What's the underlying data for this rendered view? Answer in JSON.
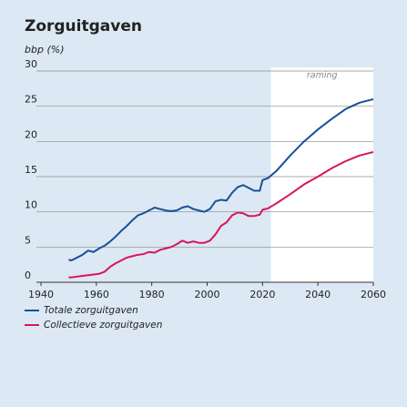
{
  "chart_data": {
    "type": "line",
    "title": "Zorguitgaven",
    "y_label": "bbp (%)",
    "forecast_region": {
      "label": "raming",
      "x": [
        2023,
        2060
      ]
    },
    "x": [
      1950,
      1951,
      1953,
      1955,
      1957,
      1959,
      1961,
      1963,
      1965,
      1967,
      1969,
      1971,
      1973,
      1975,
      1977,
      1979,
      1981,
      1983,
      1985,
      1987,
      1989,
      1991,
      1993,
      1995,
      1997,
      1999,
      2001,
      2003,
      2005,
      2007,
      2009,
      2011,
      2013,
      2015,
      2017,
      2019,
      2020,
      2022,
      2025,
      2030,
      2035,
      2040,
      2045,
      2050,
      2055,
      2060
    ],
    "series": [
      {
        "name": "Totale zorguitgaven",
        "color": "#1b4f9c",
        "values": [
          3.2,
          3.1,
          3.5,
          3.9,
          4.5,
          4.3,
          4.8,
          5.2,
          5.8,
          6.5,
          7.3,
          8.0,
          8.8,
          9.5,
          9.8,
          10.2,
          10.6,
          10.4,
          10.2,
          10.1,
          10.2,
          10.6,
          10.8,
          10.4,
          10.2,
          10.0,
          10.4,
          11.5,
          11.7,
          11.6,
          12.7,
          13.5,
          13.8,
          13.4,
          13.0,
          13.0,
          14.5,
          14.8,
          15.8,
          18.0,
          20.0,
          21.7,
          23.2,
          24.6,
          25.5,
          26.0
        ]
      },
      {
        "name": "Collectieve zorguitgaven",
        "color": "#d8155e",
        "values": [
          0.7,
          0.7,
          0.8,
          0.9,
          1.0,
          1.1,
          1.2,
          1.5,
          2.2,
          2.7,
          3.1,
          3.5,
          3.7,
          3.9,
          4.0,
          4.3,
          4.2,
          4.6,
          4.8,
          5.0,
          5.4,
          5.9,
          5.6,
          5.8,
          5.6,
          5.6,
          5.9,
          6.8,
          8.0,
          8.5,
          9.5,
          9.9,
          9.8,
          9.4,
          9.4,
          9.6,
          10.3,
          10.5,
          11.2,
          12.5,
          13.9,
          15.0,
          16.2,
          17.2,
          18.0,
          18.5
        ]
      }
    ],
    "xlim": [
      1940,
      2060
    ],
    "xticks": [
      1940,
      1960,
      1980,
      2000,
      2020,
      2040,
      2060
    ],
    "ylim": [
      0,
      30
    ],
    "yticks": [
      0,
      5,
      10,
      15,
      20,
      25,
      30
    ],
    "grid": true
  }
}
